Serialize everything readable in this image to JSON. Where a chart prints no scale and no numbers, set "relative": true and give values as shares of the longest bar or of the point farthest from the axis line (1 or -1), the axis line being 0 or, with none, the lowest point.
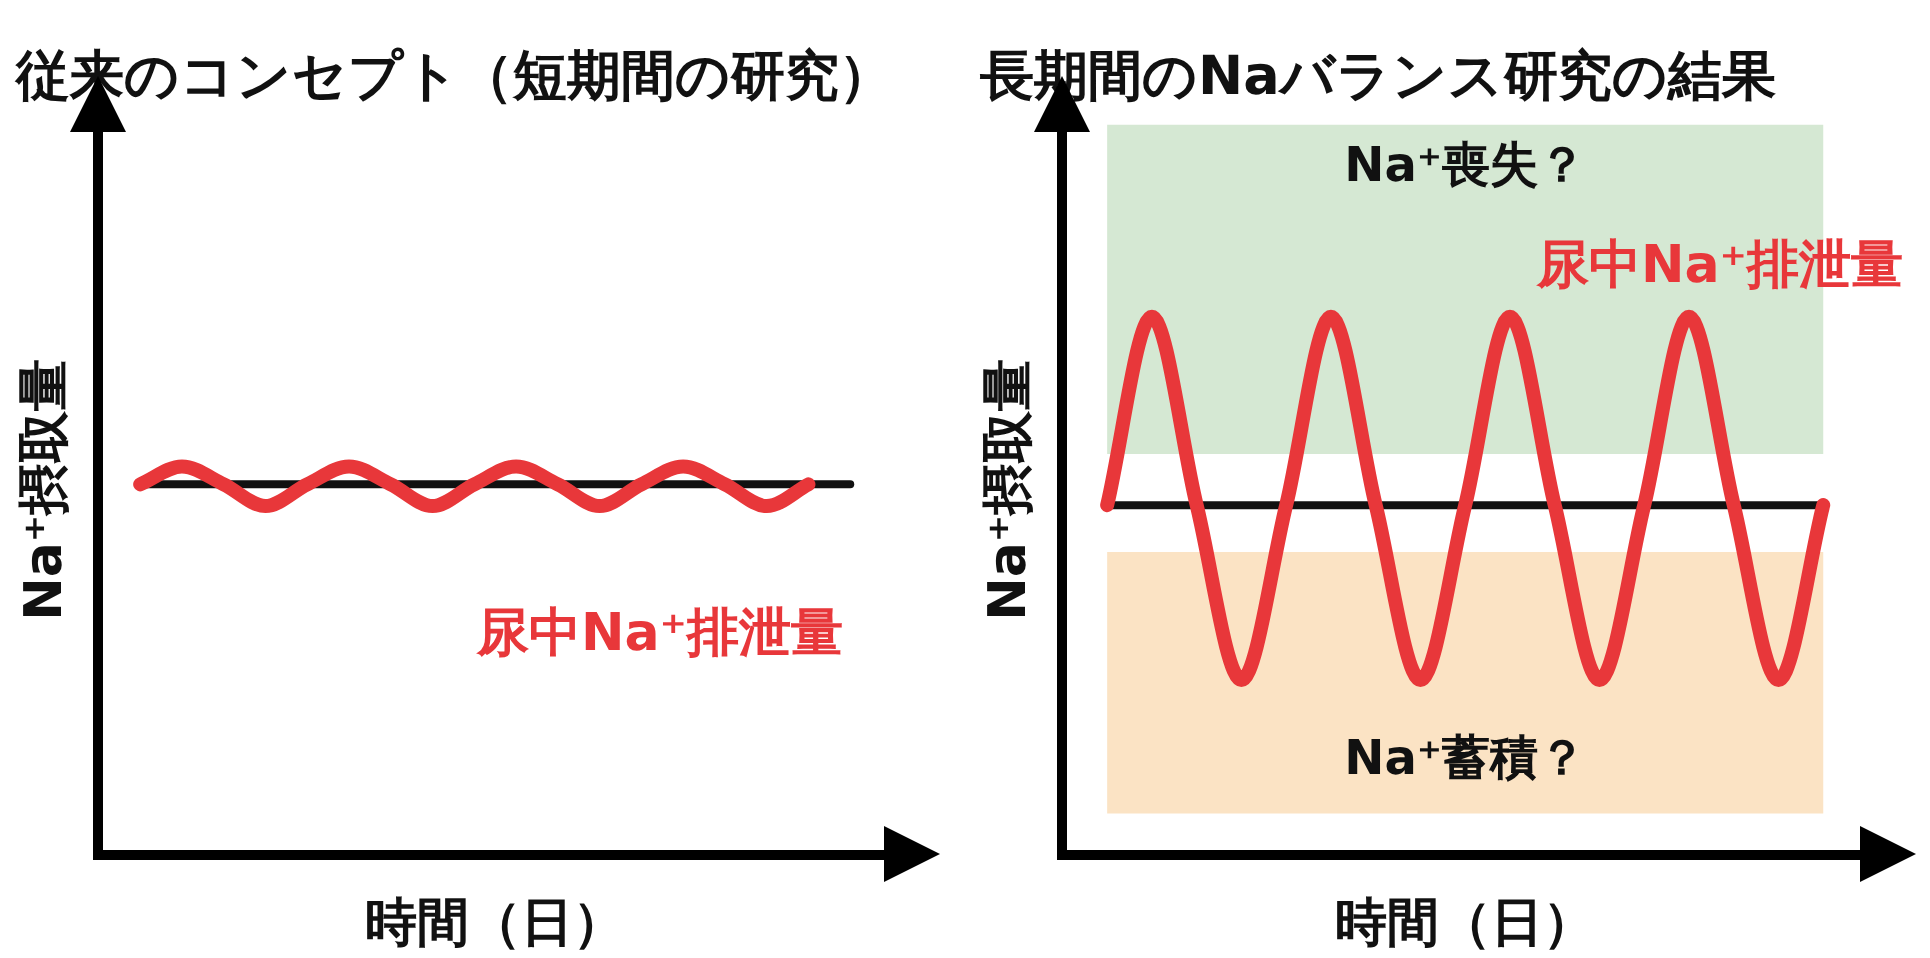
{
  "chart_data": [
    {
      "type": "line",
      "title": "従来のコンセプト（短期間の研究）",
      "xlabel": "時間（日）",
      "ylabel": "Na⁺摂取量",
      "relative": true,
      "legend": false,
      "grid": false,
      "marker": "none",
      "line_style": "solid",
      "categories": [
        null,
        null,
        null,
        null,
        null,
        null,
        null,
        null,
        null,
        null,
        null,
        null,
        null,
        null,
        null,
        null,
        null,
        null,
        null,
        null
      ],
      "series": [
        {
          "color": "#111111",
          "values": [
            null,
            0.954,
            0.954,
            0.954,
            0.954,
            0.954,
            0.954,
            0.954,
            0.954,
            0.954,
            0.954,
            0.954,
            0.954,
            0.954,
            0.954,
            0.954,
            0.954,
            0.954,
            0.954,
            null
          ]
        },
        {
          "name": "尿中Na⁺排泄量",
          "color": "#e8373a",
          "values": [
            null,
            0.954,
            1,
            0.954,
            0.898,
            0.954,
            1,
            0.954,
            0.898,
            0.954,
            1,
            0.954,
            0.898,
            0.954,
            1,
            0.954,
            0.898,
            0.954,
            null,
            null
          ]
        }
      ]
    },
    {
      "type": "line",
      "title": "長期間のNaバランス研究の結果",
      "xlabel": "時間（日）",
      "ylabel": "Na⁺摂取量",
      "relative": true,
      "legend": false,
      "grid": false,
      "marker": "none",
      "line_style": "solid",
      "categories": [
        null,
        null,
        null,
        null,
        null,
        null,
        null,
        null,
        null,
        null,
        null,
        null,
        null,
        null,
        null,
        null,
        null,
        null,
        null
      ],
      "series": [
        {
          "color": "#111111",
          "values": [
            null,
            0.65,
            0.65,
            0.65,
            0.65,
            0.65,
            0.65,
            0.65,
            0.65,
            0.65,
            0.65,
            0.65,
            0.65,
            0.65,
            0.65,
            0.65,
            0.65,
            0.65,
            null
          ]
        },
        {
          "name": "尿中Na⁺排泄量",
          "color": "#e8373a",
          "values": [
            null,
            0.65,
            1,
            0.65,
            0.325,
            0.65,
            1,
            0.65,
            0.325,
            0.65,
            1,
            0.65,
            0.325,
            0.65,
            1,
            0.65,
            0.325,
            0.65,
            null
          ]
        }
      ],
      "bands": [
        {
          "axis": "y",
          "from": 0.745,
          "to": 1.357,
          "label": "Na⁺喪失？",
          "color": "#d5e8d3"
        },
        {
          "axis": "y",
          "from": 0.077,
          "to": 0.563,
          "label": "Na⁺蓄積？",
          "color": "#fbe3c4"
        }
      ]
    }
  ]
}
